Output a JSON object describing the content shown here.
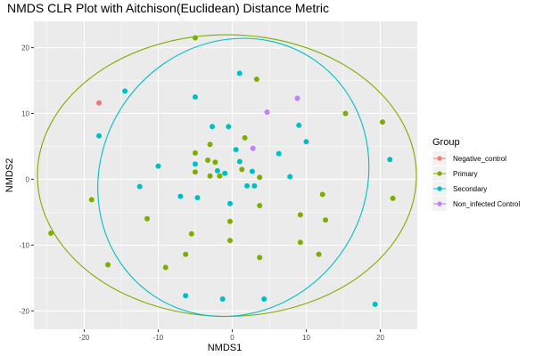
{
  "chart_data": {
    "type": "scatter",
    "title": "NMDS CLR Plot with Aitchison(Euclidean) Distance Metric",
    "xlabel": "NMDS1",
    "ylabel": "NMDS2",
    "xlim": [
      -26.8,
      25.0
    ],
    "ylim": [
      -22.8,
      24.0
    ],
    "xticks": [
      -20,
      -10,
      0,
      10,
      20
    ],
    "yticks": [
      -20,
      -10,
      0,
      10,
      20
    ],
    "xtick_labels": [
      "-20",
      "-10",
      "0",
      "10",
      "20"
    ],
    "ytick_labels": [
      "-20",
      "-10",
      "0",
      "10",
      "20"
    ],
    "grid": true,
    "legend_position": "right",
    "legend_title": "Group",
    "series": [
      {
        "name": "Negative_control",
        "color": "#F8766D",
        "points": [
          [
            -18.0,
            11.6
          ]
        ]
      },
      {
        "name": "Primary",
        "color": "#7CAE00",
        "points": [
          [
            -5.0,
            21.5
          ],
          [
            3.3,
            15.2
          ],
          [
            15.3,
            10.0
          ],
          [
            20.3,
            8.7
          ],
          [
            -5.0,
            4.0
          ],
          [
            -3.0,
            5.3
          ],
          [
            -2.3,
            2.6
          ],
          [
            -3.3,
            2.9
          ],
          [
            -5.0,
            1.1
          ],
          [
            -3.0,
            0.5
          ],
          [
            -1.7,
            0.5
          ],
          [
            1.7,
            6.3
          ],
          [
            1.3,
            1.5
          ],
          [
            3.7,
            0.3
          ],
          [
            -19.0,
            -3.1
          ],
          [
            -24.5,
            -8.2
          ],
          [
            -11.5,
            -6.0
          ],
          [
            -5.5,
            -8.3
          ],
          [
            -0.3,
            -6.4
          ],
          [
            -0.3,
            -9.3
          ],
          [
            3.7,
            -4.0
          ],
          [
            3.7,
            -11.9
          ],
          [
            9.2,
            -5.4
          ],
          [
            12.2,
            -2.3
          ],
          [
            12.6,
            -6.2
          ],
          [
            9.2,
            -9.6
          ],
          [
            21.7,
            -2.9
          ],
          [
            -16.8,
            -13.0
          ],
          [
            -9.0,
            -13.4
          ],
          [
            -6.3,
            -11.4
          ],
          [
            11.7,
            -11.4
          ]
        ]
      },
      {
        "name": "Secondary",
        "color": "#00BFC4",
        "points": [
          [
            -14.5,
            13.4
          ],
          [
            -5.0,
            12.5
          ],
          [
            1.0,
            16.1
          ],
          [
            -18.0,
            6.6
          ],
          [
            -2.7,
            8.0
          ],
          [
            -0.5,
            8.0
          ],
          [
            9.0,
            8.2
          ],
          [
            10.0,
            5.7
          ],
          [
            -10.0,
            2.0
          ],
          [
            -5.0,
            2.3
          ],
          [
            -2.0,
            1.3
          ],
          [
            -1.0,
            0.9
          ],
          [
            0.5,
            4.5
          ],
          [
            1.0,
            2.7
          ],
          [
            2.7,
            1.2
          ],
          [
            6.3,
            3.9
          ],
          [
            7.8,
            0.4
          ],
          [
            21.3,
            3.0
          ],
          [
            -12.5,
            -1.1
          ],
          [
            -7.0,
            -2.6
          ],
          [
            -4.7,
            -2.8
          ],
          [
            -0.3,
            -3.7
          ],
          [
            2.0,
            -1.0
          ],
          [
            3.0,
            -1.0
          ],
          [
            -6.3,
            -17.7
          ],
          [
            -1.3,
            -18.2
          ],
          [
            4.3,
            -18.2
          ],
          [
            19.3,
            -19.0
          ]
        ]
      },
      {
        "name": "Non_infected Control",
        "color": "#C77CFF",
        "points": [
          [
            8.8,
            12.3
          ],
          [
            4.7,
            10.2
          ],
          [
            2.8,
            4.7
          ]
        ]
      }
    ],
    "ellipses": [
      {
        "series": "Primary",
        "color": "#7CAE00",
        "center": [
          -0.72,
          0.56
        ],
        "radii": [
          25.6,
          21.4
        ],
        "angle_deg": 0
      },
      {
        "series": "Secondary",
        "color": "#00BFC4",
        "center": [
          0.15,
          0.29
        ],
        "radii": [
          19.3,
          20.0
        ],
        "angle_deg": -55
      }
    ]
  }
}
